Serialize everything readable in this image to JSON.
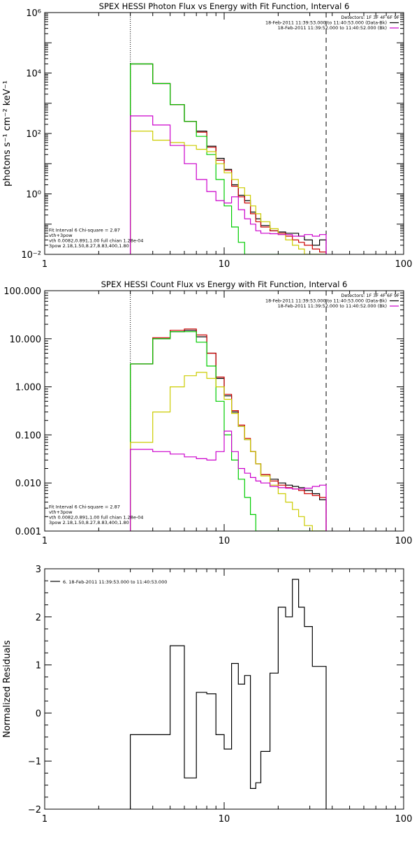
{
  "chart_data": [
    {
      "type": "line",
      "step": true,
      "title": "SPEX HESSI Photon Flux vs Energy with Fit Function, Interval 6",
      "ylabel": "photons s⁻¹ cm⁻² keV⁻¹",
      "xlabel": "",
      "xscale": "log",
      "yscale": "log",
      "xlim": [
        1,
        100
      ],
      "ylim": [
        0.01,
        1000000
      ],
      "x_ticks": [
        1,
        10,
        100
      ],
      "x_tick_labels": [
        "1",
        "10",
        "100"
      ],
      "y_ticks": [
        0.01,
        1,
        100,
        10000,
        1000000
      ],
      "y_tick_labels": [
        "10⁻²",
        "10⁰",
        "10²",
        "10⁴",
        "10⁶"
      ],
      "vlines": [
        {
          "x": 3,
          "style": "dotted"
        },
        {
          "x": 37,
          "style": "dashed"
        }
      ],
      "header_lines": [
        {
          "text": "Detectors: 1F 3F 4F 6F 9F",
          "color": "#000000"
        },
        {
          "text": "18-Feb-2011 11:39:53.000 to 11:40:53.000 (Data-Bk)",
          "color": "#000000",
          "swatch": "#000000"
        },
        {
          "text": "18-Feb-2011 11:39:52.000 to 11:40:52.000 (Bk)",
          "color": "#000000",
          "swatch": "#cc00cc"
        }
      ],
      "fit_lines": [
        {
          "text": "Fit Interval 6   Chi-square = 2.87",
          "color": "#000000"
        },
        {
          "text": "vth+3pow",
          "color": "#cc0000"
        },
        {
          "text": "vth 0.0082,0.891,1.00  full chian 1.28e-04",
          "color": "#00cc00"
        },
        {
          "text": "3pow 2.18,1.50,8.27,8.83,400,1.80",
          "color": "#cccc00"
        }
      ],
      "edges": [
        3,
        4,
        5,
        6,
        7,
        8,
        9,
        10,
        11,
        12,
        13,
        14,
        15,
        16,
        18,
        20,
        22,
        24,
        26,
        28,
        31,
        34,
        37
      ],
      "series": [
        {
          "name": "",
          "color": "#000000",
          "values": [
            20000,
            4500,
            900,
            250,
            120,
            38,
            15,
            6.5,
            2.0,
            0.9,
            0.6,
            0.25,
            0.15,
            0.09,
            0.06,
            0.055,
            0.05,
            0.05,
            0.04,
            0.03,
            0.02,
            0.03
          ]
        },
        {
          "name": "",
          "color": "#cc0000",
          "values": [
            20000,
            4500,
            900,
            250,
            110,
            35,
            13,
            6.0,
            1.8,
            0.8,
            0.5,
            0.22,
            0.12,
            0.08,
            0.06,
            0.05,
            0.04,
            0.03,
            0.025,
            0.02,
            0.015,
            0.012
          ]
        },
        {
          "name": "",
          "color": "#00cc00",
          "values": [
            20000,
            4500,
            900,
            250,
            80,
            20,
            3.0,
            0.4,
            0.08,
            0.025,
            0.01,
            0.01,
            0.01,
            0.01,
            0.01,
            0.01,
            0.01,
            0.01,
            0.01,
            0.01,
            0.01,
            0.01
          ]
        },
        {
          "name": "",
          "color": "#cccc00",
          "values": [
            120,
            60,
            50,
            40,
            30,
            25,
            10,
            5.0,
            3.0,
            1.6,
            0.9,
            0.4,
            0.22,
            0.12,
            0.07,
            0.045,
            0.03,
            0.02,
            0.015,
            0.01,
            0.01,
            0.01
          ]
        },
        {
          "name": "",
          "color": "#cc00cc",
          "values": [
            380,
            190,
            40,
            10,
            3.0,
            1.2,
            0.6,
            0.5,
            0.8,
            0.3,
            0.15,
            0.1,
            0.06,
            0.05,
            0.048,
            0.045,
            0.045,
            0.04,
            0.04,
            0.045,
            0.04,
            0.045
          ]
        }
      ]
    },
    {
      "type": "line",
      "step": true,
      "title": "SPEX HESSI Count Flux vs Energy with Fit Function, Interval 6",
      "ylabel": "",
      "xlabel": "",
      "xscale": "log",
      "yscale": "log",
      "xlim": [
        1,
        100
      ],
      "ylim": [
        0.001,
        100
      ],
      "x_ticks": [
        1,
        10,
        100
      ],
      "x_tick_labels": [
        "1",
        "10",
        "100"
      ],
      "y_ticks": [
        0.001,
        0.01,
        0.1,
        1,
        10,
        100
      ],
      "y_tick_labels": [
        "0.001",
        "0.010",
        "0.100",
        "1.000",
        "10.000",
        "100.000"
      ],
      "vlines": [
        {
          "x": 3,
          "style": "dotted"
        },
        {
          "x": 37,
          "style": "dashed"
        }
      ],
      "header_lines": [
        {
          "text": "Detectors: 1F 3F 4F 6F 9F",
          "color": "#000000"
        },
        {
          "text": "18-Feb-2011 11:39:53.000 to 11:40:53.000 (Data-Bk)",
          "color": "#000000",
          "swatch": "#000000"
        },
        {
          "text": "18-Feb-2011 11:39:52.000 to 11:40:52.000 (Bk)",
          "color": "#000000",
          "swatch": "#cc00cc"
        }
      ],
      "fit_lines": [
        {
          "text": "Fit Interval 6   Chi-square = 2.87",
          "color": "#000000"
        },
        {
          "text": "vth+3pow",
          "color": "#cc0000"
        },
        {
          "text": "vth 0.0082,0.891,1.00  full chian 1.28e-04",
          "color": "#00cc00"
        },
        {
          "text": "3pow 2.18,1.50,8.27,8.83,400,1.80",
          "color": "#cccc00"
        }
      ],
      "edges": [
        3,
        4,
        5,
        6,
        7,
        8,
        9,
        10,
        11,
        12,
        13,
        14,
        15,
        16,
        18,
        20,
        22,
        24,
        26,
        28,
        31,
        34,
        37
      ],
      "series": [
        {
          "name": "",
          "color": "#000000",
          "values": [
            3.0,
            10.0,
            14.0,
            15.0,
            11.0,
            5.0,
            1.5,
            0.65,
            0.3,
            0.15,
            0.08,
            0.045,
            0.025,
            0.015,
            0.012,
            0.01,
            0.009,
            0.0085,
            0.008,
            0.007,
            0.006,
            0.0045
          ]
        },
        {
          "name": "",
          "color": "#cc0000",
          "values": [
            3.0,
            10.5,
            15.0,
            16.0,
            12.0,
            5.0,
            1.6,
            0.7,
            0.32,
            0.16,
            0.085,
            0.045,
            0.025,
            0.015,
            0.011,
            0.009,
            0.008,
            0.0075,
            0.007,
            0.006,
            0.0055,
            0.005
          ]
        },
        {
          "name": "",
          "color": "#00cc00",
          "values": [
            3.0,
            10.0,
            14.0,
            14.0,
            8.5,
            2.7,
            0.5,
            0.1,
            0.03,
            0.012,
            0.005,
            0.0022,
            0.001,
            0.001,
            0.001,
            0.001,
            0.001,
            0.001,
            0.001,
            0.001,
            0.001,
            0.001
          ]
        },
        {
          "name": "",
          "color": "#cccc00",
          "values": [
            0.07,
            0.3,
            1.0,
            1.7,
            2.0,
            1.5,
            1.0,
            0.55,
            0.28,
            0.15,
            0.08,
            0.045,
            0.025,
            0.014,
            0.009,
            0.006,
            0.004,
            0.0028,
            0.002,
            0.0013,
            0.001,
            0.001
          ]
        },
        {
          "name": "",
          "color": "#cc00cc",
          "values": [
            0.05,
            0.045,
            0.04,
            0.035,
            0.032,
            0.03,
            0.045,
            0.12,
            0.045,
            0.02,
            0.016,
            0.013,
            0.011,
            0.01,
            0.0085,
            0.008,
            0.0078,
            0.0075,
            0.0075,
            0.0078,
            0.0085,
            0.009
          ]
        }
      ]
    },
    {
      "type": "line",
      "step": true,
      "title": "",
      "ylabel": "Normalized Residuals",
      "xlabel": "",
      "xscale": "log",
      "yscale": "linear",
      "xlim": [
        1,
        100
      ],
      "ylim": [
        -2,
        3
      ],
      "x_ticks": [
        1,
        10,
        100
      ],
      "x_tick_labels": [
        "1",
        "10",
        "100"
      ],
      "y_ticks": [
        -2,
        -1,
        0,
        1,
        2,
        3
      ],
      "y_tick_labels": [
        "−2",
        "−1",
        "0",
        "1",
        "2",
        "3"
      ],
      "legend": "top-left",
      "legend_text": "6. 18-Feb-2011 11:39:53.000 to 11:40:53.000",
      "edges": [
        3,
        4,
        5,
        6,
        7,
        8,
        9,
        10,
        11,
        12,
        13,
        14,
        15,
        16,
        18,
        20,
        22,
        24,
        26,
        28,
        31,
        34,
        37
      ],
      "series": [
        {
          "name": "",
          "color": "#000000",
          "values": [
            -0.45,
            -0.45,
            1.4,
            -1.35,
            0.43,
            0.4,
            -0.45,
            -0.75,
            1.03,
            0.6,
            0.78,
            -1.57,
            -1.45,
            -0.8,
            0.83,
            2.2,
            2.0,
            2.78,
            2.2,
            1.8,
            0.97,
            0.97
          ]
        }
      ]
    }
  ]
}
